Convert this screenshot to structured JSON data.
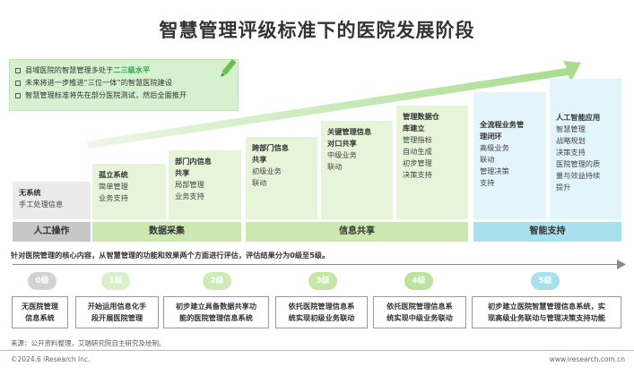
{
  "title": "智慧管理评级标准下的医院发展阶段",
  "notes": [
    {
      "pre": "县域医院的智慧管理多处于",
      "hl": "二三级水平",
      "post": ""
    },
    {
      "pre": "未来将进一步推进“三位一体”的智慧医院建设",
      "hl": "",
      "post": ""
    },
    {
      "pre": "智慧管理标准将先在部分医院测试，然后全面推开",
      "hl": "",
      "post": ""
    }
  ],
  "stages": [
    {
      "title": "无系统",
      "desc": "手工处理信息"
    },
    {
      "title": "孤立系统",
      "desc": "简单管理\n业务支持"
    },
    {
      "title": "部门内信息\n共享",
      "desc": "局部管理\n业务支持"
    },
    {
      "title": "跨部门信息\n共享",
      "desc": "初级业务\n联动"
    },
    {
      "title": "关键管理信息\n对口共享",
      "desc": "中级业务\n联动"
    },
    {
      "title": "管理数据仓\n库建立",
      "desc": "管理指标\n自动生成\n初步管理\n决策支持"
    },
    {
      "title": "全流程业务管\n理闭环",
      "desc": "高级业务\n联动\n管理决策\n支持"
    },
    {
      "title": "人工智能应用",
      "desc": "智慧管理\n战略规划\n决策支持\n医院管理的质\n量与效益持续\n提升"
    }
  ],
  "phases": [
    "人工操作",
    "数据采集",
    "信息共享",
    "智能支持"
  ],
  "intro": "针对医院管理的核心内容，从智慧管理的功能和效果两个方面进行评估，评估结果分为0级至5级。",
  "levels": [
    {
      "label": "0级",
      "desc": "无医院管理\n信息系统"
    },
    {
      "label": "1级",
      "desc": "开始运用信息化手\n段开展医院管理"
    },
    {
      "label": "2级",
      "desc": "初步建立具备数据共享功\n能的医院管理信息系统"
    },
    {
      "label": "3级",
      "desc": "依托医院管理信息系\n统实现初级业务联动"
    },
    {
      "label": "4级",
      "desc": "依托医院管理信息系\n统实现中级业务联动"
    },
    {
      "label": "5级",
      "desc": "初步建立医院智慧管理信息系统，实\n现高级业务联动与管理决策支持功能"
    }
  ],
  "source": "来源：公开资料整理，艾瑞研究院自主研究及绘制。",
  "copyright": "©2024.6 iResearch Inc.",
  "site": "www.iresearch.com.cn",
  "colors": {
    "gray": "#ebebeb",
    "green": "#e6f4d9",
    "blue": "#e3f5fa",
    "phase_gray": "#c7c7c7",
    "phase_green": "#cce8b0",
    "phase_blue": "#a9e0ee",
    "arrow_green": "#b9e3a3"
  },
  "icons": {
    "notes": "pen-icon"
  }
}
